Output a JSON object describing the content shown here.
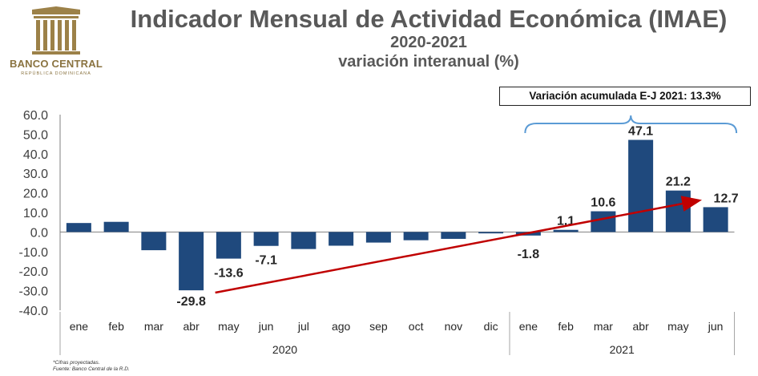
{
  "header": {
    "title": "Indicador Mensual de Actividad Económica (IMAE)",
    "period": "2020-2021",
    "subtitle": "variación interanual (%)",
    "logo": {
      "name": "BANCO CENTRAL",
      "sub": "REPÚBLICA DOMINICANA",
      "color": "#9C8148"
    }
  },
  "callout": "Variación acumulada E-J 2021:  13.3%",
  "footnotes": {
    "line1": "*Cifras proyectadas.",
    "line2": "Fuente: Banco Central de la R.D."
  },
  "chart_data": {
    "type": "bar",
    "categories": [
      "ene",
      "feb",
      "mar",
      "abr",
      "may",
      "jun",
      "jul",
      "ago",
      "sep",
      "oct",
      "nov",
      "dic",
      "ene",
      "feb",
      "mar",
      "abr",
      "may",
      "jun"
    ],
    "groups": [
      {
        "label": "2020",
        "count": 12
      },
      {
        "label": "2021",
        "count": 6
      }
    ],
    "values": [
      4.6,
      5.2,
      -9.3,
      -29.8,
      -13.6,
      -7.1,
      -8.7,
      -7.0,
      -5.4,
      -4.2,
      -3.5,
      -0.7,
      -1.8,
      1.1,
      10.6,
      47.1,
      21.2,
      12.7
    ],
    "data_labels": [
      "",
      "",
      "",
      "-29.8",
      "-13.6",
      "-7.1",
      "",
      "",
      "",
      "",
      "",
      "",
      "-1.8",
      "1.1",
      "10.6",
      "47.1",
      "21.2",
      "12.7"
    ],
    "ylim": [
      -40,
      60
    ],
    "yticks": [
      "60.0",
      "50.0",
      "40.0",
      "30.0",
      "20.0",
      "10.0",
      "0.0",
      "-10.0",
      "-20.0",
      "-30.0",
      "-40.0"
    ],
    "bar_color": "#1F497D",
    "trend_color": "#C00000",
    "trend_arrow": {
      "from": {
        "category_index": 3,
        "value": -31
      },
      "to": {
        "category_index": 17,
        "value": 16
      }
    },
    "brace": {
      "from_category_index": 12,
      "to_category_index": 17,
      "color": "#5B9BD5"
    },
    "grid": false,
    "legend": "none"
  }
}
